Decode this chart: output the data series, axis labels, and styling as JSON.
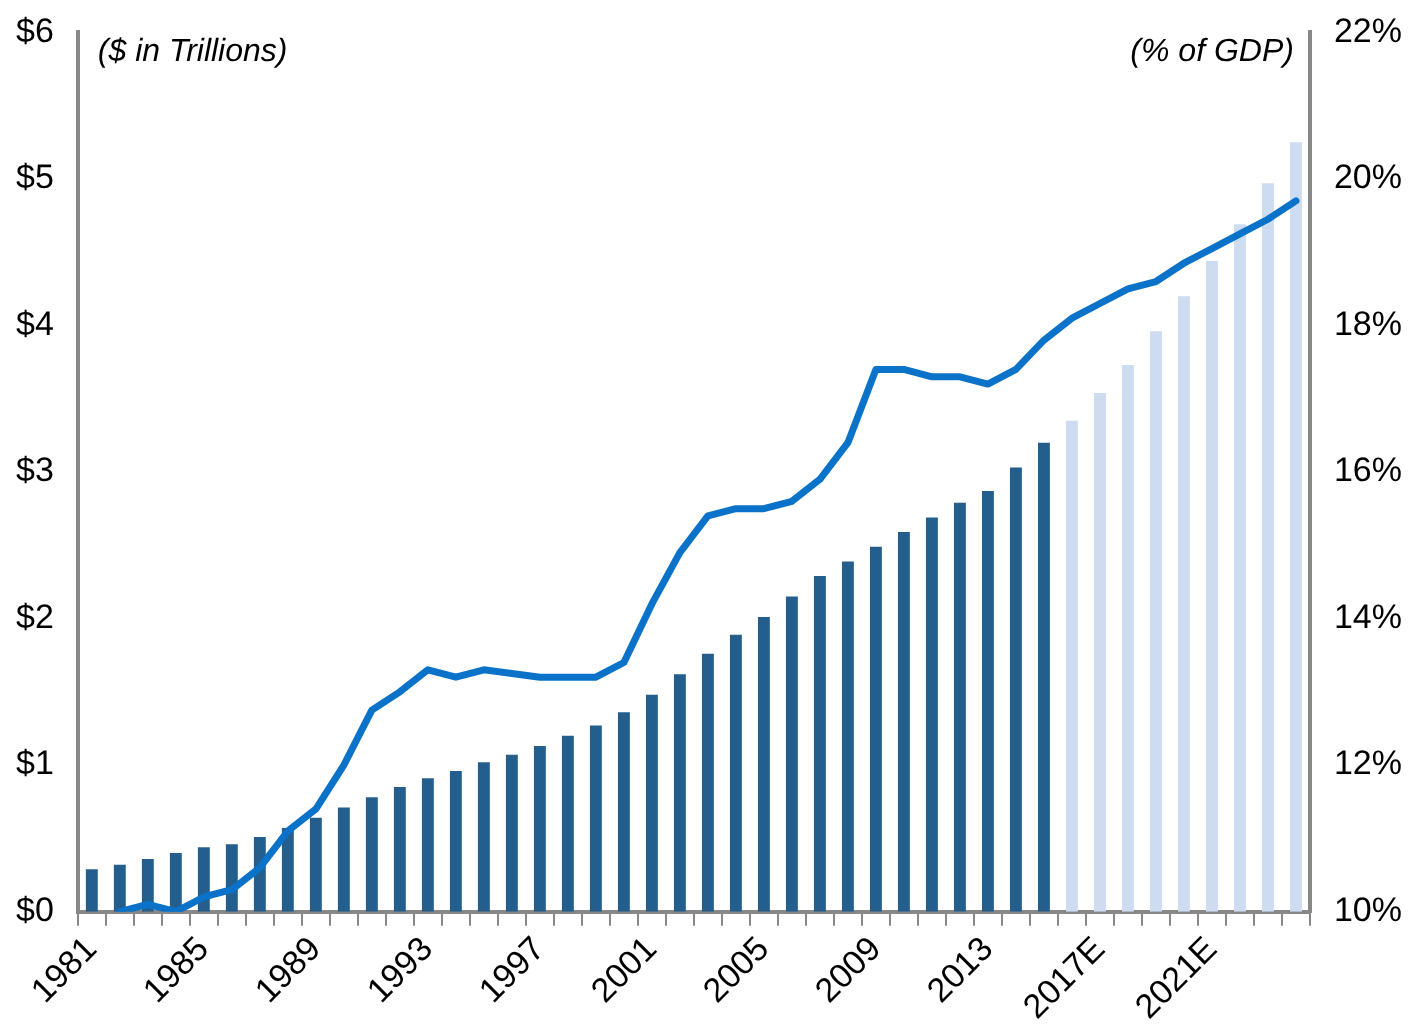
{
  "chart_data": {
    "type": "bar",
    "ylabel": "($ in Trillions)",
    "y2label": "(% of GDP)",
    "categories": [
      "1981",
      null,
      null,
      null,
      "1985",
      null,
      null,
      null,
      "1989",
      null,
      null,
      null,
      "1993",
      null,
      null,
      null,
      "1997",
      null,
      null,
      null,
      "2001",
      null,
      null,
      null,
      "2005",
      null,
      null,
      null,
      "2009",
      null,
      null,
      null,
      "2013",
      null,
      null,
      null,
      "2017E",
      null,
      null,
      null,
      "2021E",
      null,
      null,
      null
    ],
    "series": [
      {
        "colors": [
          "#245e8c",
          "#245e8c",
          "#245e8c",
          "#245e8c",
          "#245e8c",
          "#245e8c",
          "#245e8c",
          "#245e8c",
          "#245e8c",
          "#245e8c",
          "#245e8c",
          "#245e8c",
          "#245e8c",
          "#245e8c",
          "#245e8c",
          "#245e8c",
          "#245e8c",
          "#245e8c",
          "#245e8c",
          "#245e8c",
          "#245e8c",
          "#245e8c",
          "#245e8c",
          "#245e8c",
          "#245e8c",
          "#245e8c",
          "#245e8c",
          "#245e8c",
          "#245e8c",
          "#245e8c",
          "#245e8c",
          "#245e8c",
          "#245e8c",
          "#245e8c",
          "#245e8c",
          "#cddcf0",
          "#cddcf0",
          "#cddcf0",
          "#cddcf0",
          "#cddcf0",
          "#cddcf0",
          "#cddcf0",
          "#cddcf0",
          "#cddcf0"
        ],
        "values": [
          0.29,
          0.32,
          0.36,
          0.4,
          0.44,
          0.46,
          0.51,
          0.57,
          0.64,
          0.71,
          0.78,
          0.85,
          0.91,
          0.96,
          1.02,
          1.07,
          1.13,
          1.2,
          1.27,
          1.36,
          1.48,
          1.62,
          1.76,
          1.89,
          2.01,
          2.15,
          2.29,
          2.39,
          2.49,
          2.59,
          2.69,
          2.79,
          2.87,
          3.03,
          3.2,
          3.35,
          3.54,
          3.73,
          3.96,
          4.2,
          4.44,
          4.69,
          4.97,
          5.25
        ]
      },
      {
        "type": "line",
        "axis": "y2",
        "color": "#0a72c8",
        "values": [
          null,
          10.0,
          10.1,
          10.0,
          10.2,
          10.3,
          10.6,
          11.1,
          11.4,
          12.0,
          12.75,
          13.0,
          13.3,
          13.2,
          13.3,
          13.25,
          13.2,
          13.2,
          13.2,
          13.4,
          14.2,
          14.9,
          15.4,
          15.5,
          15.5,
          15.6,
          15.9,
          16.4,
          17.4,
          17.4,
          17.3,
          17.3,
          17.2,
          17.4,
          17.8,
          18.1,
          18.3,
          18.5,
          18.6,
          18.85,
          19.05,
          19.25,
          19.45,
          19.7
        ]
      }
    ],
    "ylim": [
      0,
      6
    ],
    "yticks": [
      {
        "value": 0,
        "label": "$0"
      },
      {
        "value": 1,
        "label": "$1"
      },
      {
        "value": 2,
        "label": "$2"
      },
      {
        "value": 3,
        "label": "$3"
      },
      {
        "value": 4,
        "label": "$4"
      },
      {
        "value": 5,
        "label": "$5"
      },
      {
        "value": 6,
        "label": "$6"
      }
    ],
    "y2lim": [
      10,
      22
    ],
    "y2ticks": [
      {
        "value": 10,
        "label": "10%"
      },
      {
        "value": 12,
        "label": "12%"
      },
      {
        "value": 14,
        "label": "14%"
      },
      {
        "value": 16,
        "label": "16%"
      },
      {
        "value": 18,
        "label": "18%"
      },
      {
        "value": 20,
        "label": "20%"
      },
      {
        "value": 22,
        "label": "22%"
      }
    ],
    "grid": false,
    "legend": false,
    "marker": "none",
    "line_style": "solid"
  }
}
